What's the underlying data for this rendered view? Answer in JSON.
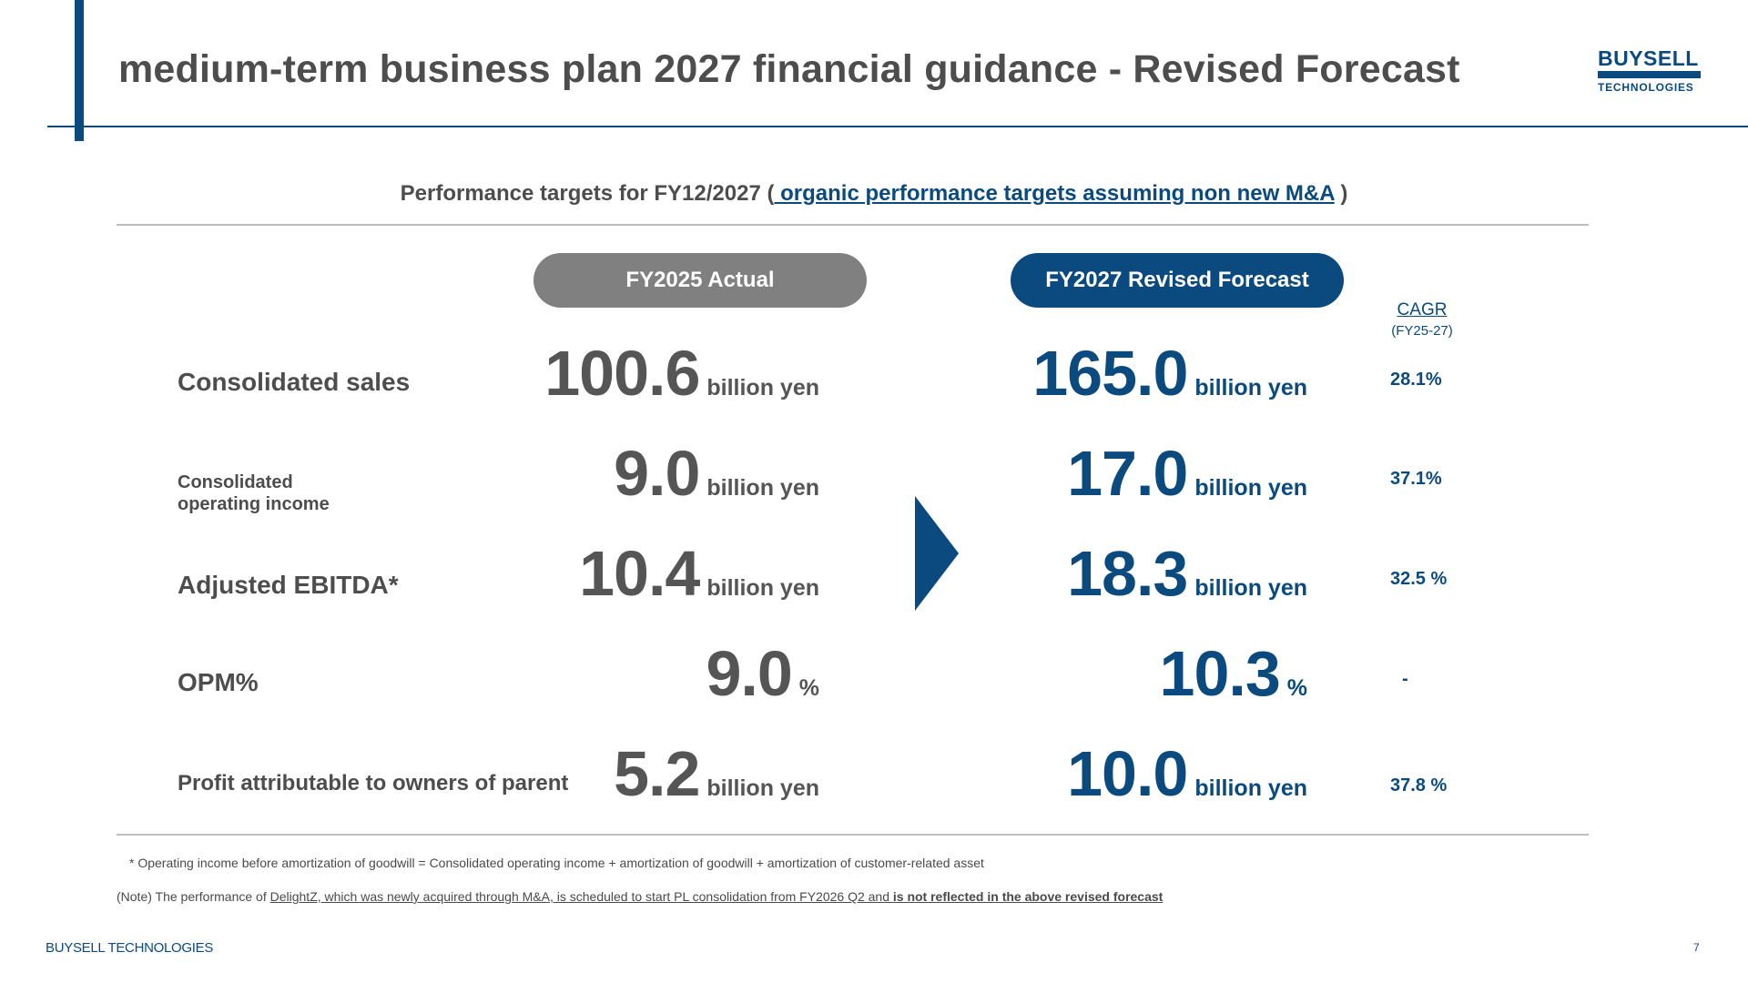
{
  "header": {
    "title": "medium-term business plan 2027 financial guidance - Revised Forecast",
    "logo_top": "BUYSELL",
    "logo_bottom": "TECHNOLOGIES"
  },
  "subtitle": {
    "prefix": "Performance targets for FY12/2027 (",
    "link": " organic performance targets assuming non new M&A",
    "suffix": " )"
  },
  "columns": {
    "actual": "FY2025 Actual",
    "forecast": "FY2027 Revised Forecast",
    "cagr_label": "CAGR",
    "cagr_sub": "(FY25-27)"
  },
  "rows": [
    {
      "label": "Consolidated sales",
      "actual": "100.6",
      "actual_unit": "billion yen",
      "forecast": "165.0",
      "forecast_unit": "billion yen",
      "cagr": "28.1%"
    },
    {
      "label_line1": "Consolidated",
      "label_line2": "operating income",
      "actual": "9.0",
      "actual_unit": "billion yen",
      "forecast": "17.0",
      "forecast_unit": "billion yen",
      "cagr": "37.1%"
    },
    {
      "label": "Adjusted EBITDA*",
      "actual": "10.4",
      "actual_unit": "billion yen",
      "forecast": "18.3",
      "forecast_unit": "billion yen",
      "cagr": "32.5 %"
    },
    {
      "label": "OPM%",
      "actual": "9.0",
      "actual_unit": "%",
      "forecast": "10.3",
      "forecast_unit": "%",
      "cagr": "-"
    },
    {
      "label": "Profit attributable to owners of parent",
      "actual": "5.2",
      "actual_unit": "billion yen",
      "forecast": "10.0",
      "forecast_unit": "billion yen",
      "cagr": "37.8 %"
    }
  ],
  "notes": {
    "note1": "* Operating income before amortization of goodwill = Consolidated operating income + amortization of goodwill + amortization of customer-related asset",
    "note2_prefix": "(Note) The performance of ",
    "note2_underlined": "DelightZ, which was newly acquired through M&A, is scheduled to start PL consolidation from FY2026 Q2 and ",
    "note2_bold": "is not reflected in the above revised forecast"
  },
  "footer": {
    "brand": "BUYSELL TECHNOLOGIES",
    "page": "7"
  },
  "colors": {
    "brand_blue": "#0b4a7e",
    "gray_pill": "#808080",
    "text_gray": "#4d4d4d"
  }
}
